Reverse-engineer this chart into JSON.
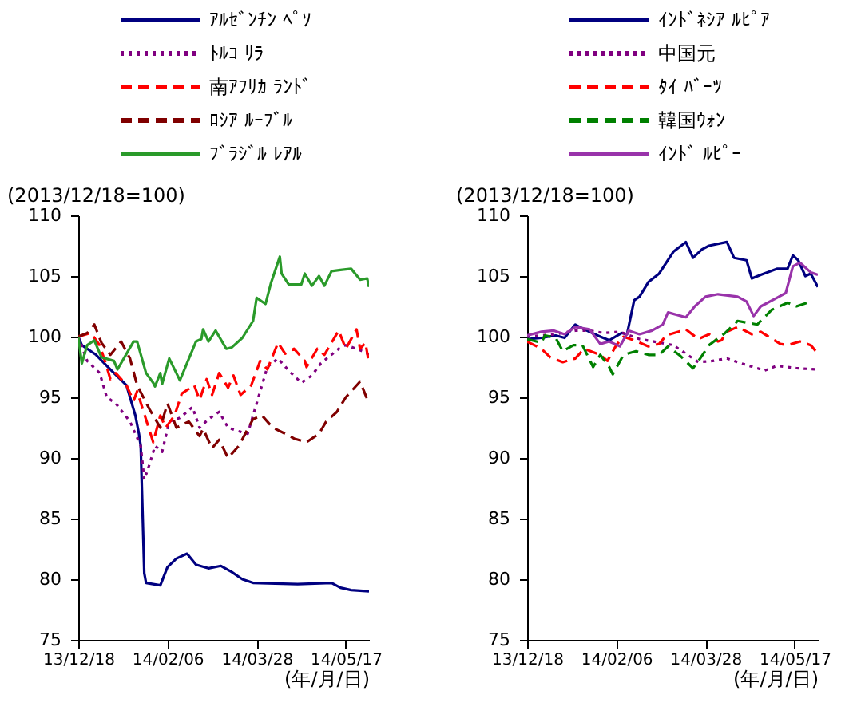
{
  "chart_data": [
    {
      "type": "line",
      "ylabel": "(2013/12/18=100)",
      "xlabel": "(年/月/日)",
      "legend": "top",
      "grid": false,
      "xlim": [
        "2013-12-18",
        "2014-05-30"
      ],
      "ylim": [
        75,
        110
      ],
      "yticks": [
        75,
        80,
        85,
        90,
        95,
        100,
        105,
        110
      ],
      "xticks": [
        {
          "value": "2013-12-18",
          "label": "13/12/18"
        },
        {
          "value": "2014-02-06",
          "label": "14/02/06"
        },
        {
          "value": "2014-03-28",
          "label": "14/03/28"
        },
        {
          "value": "2014-05-17",
          "label": "14/05/17"
        }
      ],
      "series": [
        {
          "name": "ｱﾙｾﾞﾝﾁﾝ ﾍﾟｿ",
          "color": "#000080",
          "line_style": "solid",
          "x": [
            "2013-12-18",
            "2013-12-20",
            "2013-12-28",
            "2014-01-05",
            "2014-01-14",
            "2014-01-19",
            "2014-01-21",
            "2014-01-22",
            "2014-01-24",
            "2014-01-25",
            "2014-02-02",
            "2014-02-06",
            "2014-02-11",
            "2014-02-17",
            "2014-02-22",
            "2014-03-01",
            "2014-03-08",
            "2014-03-14",
            "2014-03-20",
            "2014-03-26",
            "2014-04-20",
            "2014-05-09",
            "2014-05-14",
            "2014-05-20",
            "2014-05-30"
          ],
          "values": [
            100,
            99.3,
            98.5,
            97.3,
            96,
            93.5,
            92,
            91,
            80.5,
            79.7,
            79.5,
            81,
            81.7,
            82.1,
            81.2,
            80.9,
            81.1,
            80.6,
            80,
            79.7,
            79.6,
            79.7,
            79.3,
            79.1,
            79
          ]
        },
        {
          "name": "ﾄﾙｺ ﾘﾗ",
          "color": "#800080",
          "line_style": "dotted",
          "x": [
            "2013-12-18",
            "2013-12-23",
            "2013-12-30",
            "2014-01-03",
            "2014-01-08",
            "2014-01-16",
            "2014-01-22",
            "2014-01-24",
            "2014-01-27",
            "2014-01-30",
            "2014-02-03",
            "2014-02-07",
            "2014-02-13",
            "2014-02-20",
            "2014-02-24",
            "2014-03-01",
            "2014-03-07",
            "2014-03-12",
            "2014-03-18",
            "2014-03-23",
            "2014-03-29",
            "2014-04-03",
            "2014-04-09",
            "2014-04-15",
            "2014-04-22",
            "2014-04-28",
            "2014-05-03",
            "2014-05-13",
            "2014-05-17",
            "2014-05-23",
            "2014-05-28",
            "2014-05-30"
          ],
          "values": [
            100,
            98,
            97,
            95,
            94.5,
            93,
            91,
            88.2,
            89.5,
            91,
            90.5,
            93,
            93.3,
            94.2,
            92.5,
            93.2,
            93.8,
            92.5,
            92.2,
            92,
            95,
            97.5,
            98.2,
            97.2,
            96.2,
            96.8,
            97.8,
            99,
            99.3,
            99,
            98.7,
            98.5
          ]
        },
        {
          "name": "南ｱﾌﾘｶ ﾗﾝﾄﾞ",
          "color": "#ff0000",
          "line_style": "dashed",
          "x": [
            "2013-12-18",
            "2013-12-25",
            "2013-12-30",
            "2014-01-03",
            "2014-01-05",
            "2014-01-08",
            "2014-01-14",
            "2014-01-18",
            "2014-01-20",
            "2014-01-29",
            "2014-02-02",
            "2014-02-05",
            "2014-02-10",
            "2014-02-14",
            "2014-02-21",
            "2014-02-24",
            "2014-02-28",
            "2014-03-03",
            "2014-03-07",
            "2014-03-12",
            "2014-03-15",
            "2014-03-19",
            "2014-03-25",
            "2014-03-30",
            "2014-04-03",
            "2014-04-09",
            "2014-04-13",
            "2014-04-18",
            "2014-04-24",
            "2014-04-25",
            "2014-05-01",
            "2014-05-05",
            "2014-05-09",
            "2014-05-13",
            "2014-05-17",
            "2014-05-23",
            "2014-05-25",
            "2014-05-28",
            "2014-05-30"
          ],
          "values": [
            100,
            100.3,
            99.3,
            97.5,
            96.5,
            97,
            96,
            94.7,
            95.5,
            91.3,
            93.5,
            92.5,
            93.5,
            95.3,
            96,
            94.8,
            96.5,
            95.2,
            97,
            95.8,
            96.8,
            95.2,
            96,
            98,
            97.3,
            99.5,
            98.6,
            99,
            98,
            97.5,
            99,
            98.5,
            99.5,
            100.5,
            99,
            100.6,
            99,
            99.5,
            97.8
          ]
        },
        {
          "name": "ﾛｼｱ ﾙｰﾌﾞﾙ",
          "color": "#800000",
          "line_style": "dashed",
          "x": [
            "2013-12-18",
            "2013-12-23",
            "2013-12-27",
            "2013-12-31",
            "2014-01-05",
            "2014-01-11",
            "2014-01-16",
            "2014-01-20",
            "2014-01-27",
            "2014-02-02",
            "2014-02-06",
            "2014-02-11",
            "2014-02-18",
            "2014-02-24",
            "2014-02-26",
            "2014-03-03",
            "2014-03-07",
            "2014-03-12",
            "2014-03-18",
            "2014-03-26",
            "2014-03-31",
            "2014-04-06",
            "2014-04-13",
            "2014-04-18",
            "2014-04-25",
            "2014-05-02",
            "2014-05-06",
            "2014-05-12",
            "2014-05-17",
            "2014-05-25",
            "2014-05-30"
          ],
          "values": [
            100,
            100.3,
            101,
            99.5,
            98.5,
            99.6,
            98.2,
            96,
            94,
            92.5,
            94.5,
            92.5,
            93,
            91.8,
            92.4,
            90.8,
            91.5,
            90,
            91,
            93.2,
            93.5,
            92.5,
            92,
            91.6,
            91.3,
            92,
            93,
            93.8,
            95,
            96.3,
            94.5
          ]
        },
        {
          "name": "ﾌﾞﾗｼﾞﾙ ﾚｱﾙ",
          "color": "#2a9a2a",
          "line_style": "solid",
          "x": [
            "2013-12-18",
            "2013-12-20",
            "2013-12-23",
            "2013-12-27",
            "2013-12-31",
            "2014-01-07",
            "2014-01-09",
            "2014-01-18",
            "2014-01-20",
            "2014-01-25",
            "2014-01-29",
            "2014-01-30",
            "2014-02-02",
            "2014-02-03",
            "2014-02-07",
            "2014-02-11",
            "2014-02-13",
            "2014-02-22",
            "2014-02-25",
            "2014-02-26",
            "2014-03-01",
            "2014-03-05",
            "2014-03-11",
            "2014-03-14",
            "2014-03-20",
            "2014-03-26",
            "2014-03-28",
            "2014-04-02",
            "2014-04-05",
            "2014-04-10",
            "2014-04-11",
            "2014-04-15",
            "2014-04-22",
            "2014-04-24",
            "2014-04-28",
            "2014-05-02",
            "2014-05-05",
            "2014-05-09",
            "2014-05-14",
            "2014-05-20",
            "2014-05-25",
            "2014-05-29",
            "2014-05-30"
          ],
          "values": [
            100,
            97.8,
            99.3,
            99.7,
            98.3,
            98,
            97.3,
            99.6,
            99.6,
            97,
            96.2,
            95.9,
            97,
            96.1,
            98.2,
            97,
            96.4,
            99.6,
            99.8,
            100.6,
            99.6,
            100.5,
            99,
            99.1,
            99.9,
            101.3,
            103.2,
            102.7,
            104.4,
            106.6,
            105.2,
            104.3,
            104.3,
            105.2,
            104.2,
            105,
            104.2,
            105.4,
            105.5,
            105.6,
            104.7,
            104.8,
            104.1
          ]
        }
      ]
    },
    {
      "type": "line",
      "ylabel": "(2013/12/18=100)",
      "xlabel": "(年/月/日)",
      "legend": "top",
      "grid": false,
      "xlim": [
        "2013-12-18",
        "2014-05-30"
      ],
      "ylim": [
        75,
        110
      ],
      "yticks": [
        75,
        80,
        85,
        90,
        95,
        100,
        105,
        110
      ],
      "xticks": [
        {
          "value": "2013-12-18",
          "label": "13/12/18"
        },
        {
          "value": "2014-02-06",
          "label": "14/02/06"
        },
        {
          "value": "2014-03-28",
          "label": "14/03/28"
        },
        {
          "value": "2014-05-17",
          "label": "14/05/17"
        }
      ],
      "series": [
        {
          "name": "ｲﾝﾄﾞﾈｼｱ ﾙﾋﾟｱ",
          "color": "#000080",
          "line_style": "solid",
          "x": [
            "2013-12-18",
            "2013-12-26",
            "2014-01-03",
            "2014-01-08",
            "2014-01-14",
            "2014-01-19",
            "2014-01-28",
            "2014-02-02",
            "2014-02-09",
            "2014-02-12",
            "2014-02-16",
            "2014-02-19",
            "2014-02-24",
            "2014-03-02",
            "2014-03-10",
            "2014-03-17",
            "2014-03-21",
            "2014-03-26",
            "2014-03-30",
            "2014-04-09",
            "2014-04-13",
            "2014-04-20",
            "2014-04-23",
            "2014-04-28",
            "2014-05-07",
            "2014-05-13",
            "2014-05-16",
            "2014-05-19",
            "2014-05-23",
            "2014-05-26",
            "2014-05-30"
          ],
          "values": [
            99.8,
            99.9,
            100.1,
            99.9,
            101,
            100.6,
            100,
            99.7,
            100.3,
            100.2,
            103,
            103.3,
            104.5,
            105.2,
            107,
            107.8,
            106.5,
            107.2,
            107.5,
            107.8,
            106.5,
            106.3,
            104.8,
            105.1,
            105.6,
            105.6,
            106.7,
            106.3,
            105,
            105.2,
            104.1
          ]
        },
        {
          "name": "中国元",
          "color": "#800080",
          "line_style": "dotted",
          "x": [
            "2013-12-18",
            "2014-01-03",
            "2014-01-14",
            "2014-01-22",
            "2014-01-30",
            "2014-02-08",
            "2014-02-19",
            "2014-02-27",
            "2014-03-10",
            "2014-03-15",
            "2014-03-24",
            "2014-04-01",
            "2014-04-09",
            "2014-04-17",
            "2014-04-26",
            "2014-04-30",
            "2014-05-07",
            "2014-05-18",
            "2014-05-30"
          ],
          "values": [
            100,
            100.2,
            100.5,
            100.5,
            100.3,
            100.4,
            99.8,
            99.6,
            99.3,
            98.8,
            97.9,
            98,
            98.2,
            97.8,
            97.4,
            97.2,
            97.6,
            97.4,
            97.3
          ]
        },
        {
          "name": "ﾀｲ ﾊﾞｰﾂ",
          "color": "#ff0000",
          "line_style": "dashed",
          "x": [
            "2013-12-18",
            "2013-12-26",
            "2013-12-31",
            "2014-01-07",
            "2014-01-14",
            "2014-01-19",
            "2014-01-28",
            "2014-02-01",
            "2014-02-06",
            "2014-02-10",
            "2014-02-16",
            "2014-02-24",
            "2014-03-02",
            "2014-03-06",
            "2014-03-17",
            "2014-03-24",
            "2014-03-30",
            "2014-04-04",
            "2014-04-06",
            "2014-04-09",
            "2014-04-15",
            "2014-04-23",
            "2014-04-28",
            "2014-05-09",
            "2014-05-13",
            "2014-05-20",
            "2014-05-26",
            "2014-05-30"
          ],
          "values": [
            99.6,
            99,
            98.3,
            97.9,
            98.2,
            99,
            98.5,
            98,
            99.3,
            100,
            99.7,
            99.2,
            99.4,
            100.1,
            100.6,
            99.8,
            100.2,
            99.6,
            99.7,
            100.4,
            100.8,
            100.2,
            100.4,
            99.4,
            99.3,
            99.6,
            99.3,
            98.6
          ]
        },
        {
          "name": "韓国ｳｫﾝ",
          "color": "#008000",
          "line_style": "dashed",
          "x": [
            "2013-12-18",
            "2013-12-26",
            "2013-12-28",
            "2014-01-03",
            "2014-01-07",
            "2014-01-13",
            "2014-01-18",
            "2014-01-24",
            "2014-01-28",
            "2014-02-02",
            "2014-02-04",
            "2014-02-10",
            "2014-02-17",
            "2014-02-24",
            "2014-03-02",
            "2014-03-07",
            "2014-03-14",
            "2014-03-21",
            "2014-03-25",
            "2014-03-30",
            "2014-04-08",
            "2014-04-15",
            "2014-04-26",
            "2014-05-04",
            "2014-05-13",
            "2014-05-18",
            "2014-05-26"
          ],
          "values": [
            99.8,
            99.5,
            100.1,
            99.9,
            98.8,
            99.3,
            99.3,
            97.5,
            98.5,
            97.5,
            96.9,
            98.5,
            98.8,
            98.5,
            98.5,
            99.2,
            98.4,
            97.4,
            98.2,
            99.3,
            100.3,
            101.3,
            101,
            102.2,
            102.8,
            102.5,
            102.9
          ]
        },
        {
          "name": "ｲﾝﾄﾞ ﾙﾋﾟｰ",
          "color": "#9933aa",
          "line_style": "solid",
          "x": [
            "2013-12-18",
            "2013-12-26",
            "2014-01-02",
            "2014-01-08",
            "2014-01-14",
            "2014-01-22",
            "2014-01-28",
            "2014-02-02",
            "2014-02-08",
            "2014-02-13",
            "2014-02-19",
            "2014-02-26",
            "2014-03-04",
            "2014-03-07",
            "2014-03-17",
            "2014-03-22",
            "2014-03-28",
            "2014-04-04",
            "2014-04-15",
            "2014-04-20",
            "2014-04-24",
            "2014-04-28",
            "2014-05-07",
            "2014-05-12",
            "2014-05-16",
            "2014-05-20",
            "2014-05-26",
            "2014-05-30"
          ],
          "values": [
            100.1,
            100.4,
            100.5,
            100.2,
            100.8,
            100.6,
            99.4,
            99.6,
            99.2,
            100.5,
            100.2,
            100.5,
            101,
            102,
            101.6,
            102.5,
            103.3,
            103.5,
            103.3,
            102.9,
            101.7,
            102.5,
            103.2,
            103.6,
            105.8,
            106.1,
            105.3,
            105.1
          ]
        }
      ]
    }
  ]
}
